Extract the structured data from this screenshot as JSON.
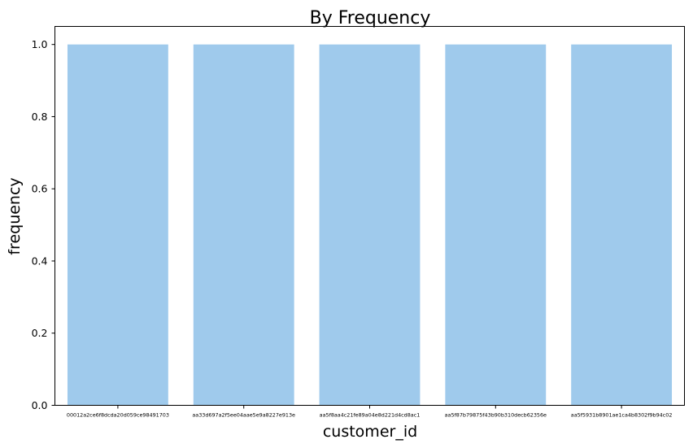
{
  "chart_data": {
    "type": "bar",
    "title": "By Frequency",
    "xlabel": "customer_id",
    "ylabel": "frequency",
    "categories": [
      "00012a2ce6f8dcda20d059ce98491703",
      "aa33d697a2f5ee04aae5e9a8227e913e",
      "aa5f8aa4c21fe89a04e8d221d4cd8ac1",
      "aa5f87b79875f43b90b310decb62356e",
      "aa5f5931b8901ae1ca4b8302f9b94c02"
    ],
    "values": [
      1.0,
      1.0,
      1.0,
      1.0,
      1.0
    ],
    "ylim": [
      0,
      1.05
    ],
    "yticks": [
      "0.0",
      "0.2",
      "0.4",
      "0.6",
      "0.8",
      "1.0"
    ],
    "grid": false,
    "legend": "none",
    "colors": {
      "bar": "#9fcaec",
      "axes": "#000000",
      "background": "#ffffff"
    }
  }
}
